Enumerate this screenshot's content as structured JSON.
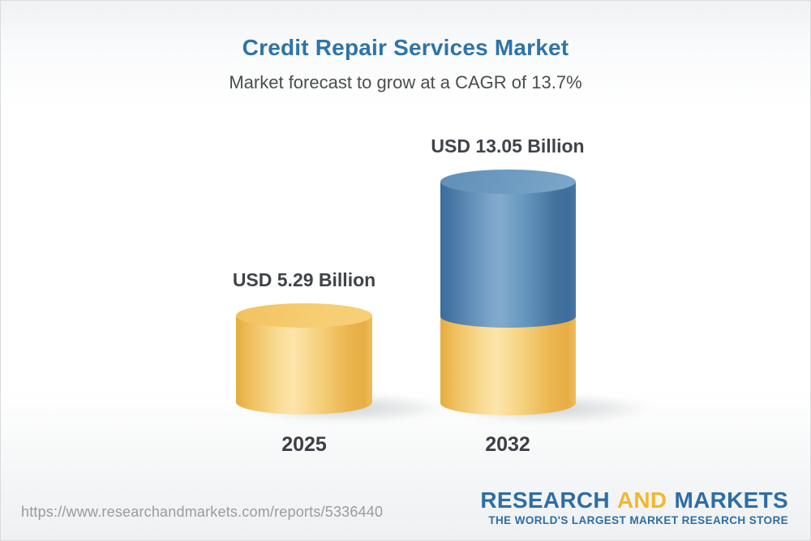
{
  "header": {
    "title": "Credit Repair Services Market",
    "subtitle": "Market forecast to grow at a CAGR of 13.7%"
  },
  "chart_data": {
    "type": "bar",
    "bar_style": "3d-cylinder",
    "title": "Credit Repair Services Market",
    "subtitle": "Market forecast to grow at a CAGR of 13.7%",
    "cagr_percent": 13.7,
    "unit": "USD Billion",
    "categories": [
      "2025",
      "2032"
    ],
    "values": [
      5.29,
      13.05
    ],
    "value_labels": [
      "USD 5.29 Billion",
      "USD 13.05 Billion"
    ],
    "series_note": "2032 cylinder is stacked: gold base equals 2025 value, blue top equals growth to 13.05",
    "legend": "none",
    "axes": "none",
    "colors": {
      "base_segment_gold": "#F3C767",
      "growth_segment_blue": "#527FAB",
      "title_blue": "#2E74A9",
      "label_text": "#3F4449"
    }
  },
  "footer": {
    "url": "https://www.researchandmarkets.com/reports/5336440",
    "logo": {
      "word_research": "RESEARCH",
      "word_and": "AND",
      "word_markets": "MARKETS",
      "tagline": "THE WORLD'S LARGEST MARKET RESEARCH STORE",
      "blue": "#2E6DA4",
      "gold": "#F0B832"
    }
  }
}
